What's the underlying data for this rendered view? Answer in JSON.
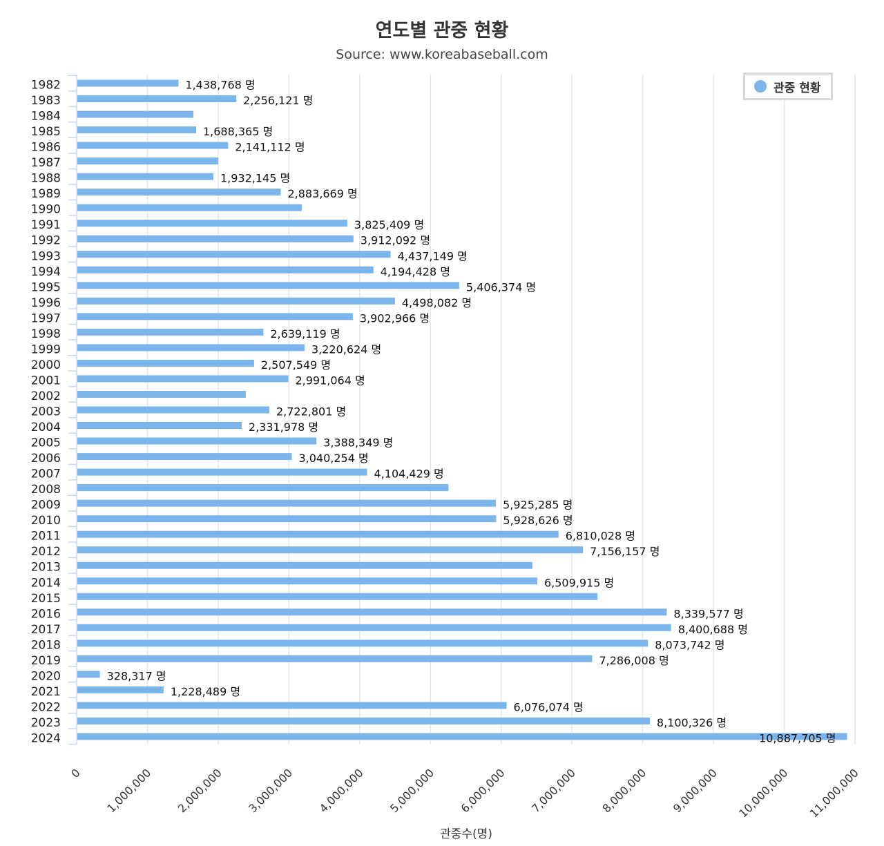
{
  "chart_data": {
    "type": "bar",
    "orientation": "horizontal",
    "title": "연도별 관중 현황",
    "subtitle": "Source: www.koreabaseball.com",
    "xlabel": "관중수(명)",
    "ylabel": "",
    "xlim": [
      0,
      11000000
    ],
    "x_ticks": [
      "0",
      "1,000,000",
      "2,000,000",
      "3,000,000",
      "4,000,000",
      "5,000,000",
      "6,000,000",
      "7,000,000",
      "8,000,000",
      "9,000,000",
      "10,000,000",
      "11,000,000"
    ],
    "grid": true,
    "legend_position": "top-right",
    "label_suffix": " 명",
    "colors": {
      "bar": "#7cb5ec",
      "grid": "#e6e6e6",
      "axis": "#ccd6eb"
    },
    "categories": [
      "1982",
      "1983",
      "1984",
      "1985",
      "1986",
      "1987",
      "1988",
      "1989",
      "1990",
      "1991",
      "1992",
      "1993",
      "1994",
      "1995",
      "1996",
      "1997",
      "1998",
      "1999",
      "2000",
      "2001",
      "2002",
      "2003",
      "2004",
      "2005",
      "2006",
      "2007",
      "2008",
      "2009",
      "2010",
      "2011",
      "2012",
      "2013",
      "2014",
      "2015",
      "2016",
      "2017",
      "2018",
      "2019",
      "2020",
      "2021",
      "2022",
      "2023",
      "2024"
    ],
    "series": [
      {
        "name": "관중 현황",
        "values": [
          1438768,
          2256121,
          1650000,
          1688365,
          2141112,
          2000000,
          1932145,
          2883669,
          3180000,
          3825409,
          3912092,
          4437149,
          4194428,
          5406374,
          4498082,
          3902966,
          2639119,
          3220624,
          2507549,
          2991064,
          2390000,
          2722801,
          2331978,
          3388349,
          3040254,
          4104429,
          5255000,
          5925285,
          5928626,
          6810028,
          7156157,
          6440000,
          6509915,
          7360000,
          8339577,
          8400688,
          8073742,
          7286008,
          328317,
          1228489,
          6076074,
          8100326,
          10887705
        ],
        "data_labels": [
          "1,438,768",
          "2,256,121",
          "",
          "1,688,365",
          "2,141,112",
          "",
          "1,932,145",
          "2,883,669",
          "",
          "3,825,409",
          "3,912,092",
          "4,437,149",
          "4,194,428",
          "5,406,374",
          "4,498,082",
          "3,902,966",
          "2,639,119",
          "3,220,624",
          "2,507,549",
          "2,991,064",
          "",
          "2,722,801",
          "2,331,978",
          "3,388,349",
          "3,040,254",
          "4,104,429",
          "",
          "5,925,285",
          "5,928,626",
          "6,810,028",
          "7,156,157",
          "",
          "6,509,915",
          "",
          "8,339,577",
          "8,400,688",
          "8,073,742",
          "7,286,008",
          "328,317",
          "1,228,489",
          "6,076,074",
          "8,100,326",
          "10,887,705"
        ]
      }
    ]
  }
}
